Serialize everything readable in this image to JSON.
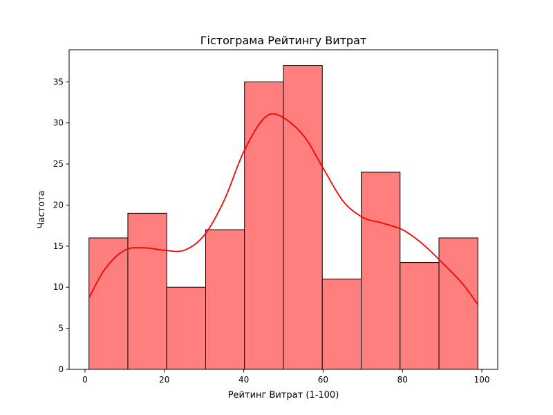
{
  "chart_data": {
    "type": "bar",
    "title": "Гістограма Рейтингу Витрат",
    "xlabel": "Рейтинг Витрат (1-100)",
    "ylabel": "Частота",
    "bins": [
      {
        "start": 1.0,
        "end": 10.8,
        "count": 16
      },
      {
        "start": 10.8,
        "end": 20.6,
        "count": 19
      },
      {
        "start": 20.6,
        "end": 30.4,
        "count": 10
      },
      {
        "start": 30.4,
        "end": 40.2,
        "count": 17
      },
      {
        "start": 40.2,
        "end": 50.0,
        "count": 35
      },
      {
        "start": 50.0,
        "end": 59.8,
        "count": 37
      },
      {
        "start": 59.8,
        "end": 69.6,
        "count": 11
      },
      {
        "start": 69.6,
        "end": 79.4,
        "count": 24
      },
      {
        "start": 79.4,
        "end": 89.2,
        "count": 13
      },
      {
        "start": 89.2,
        "end": 99.0,
        "count": 16
      }
    ],
    "kde": {
      "x": [
        1,
        5,
        10,
        15,
        20,
        25,
        30,
        35,
        40,
        45,
        49,
        55,
        60,
        65,
        70,
        75,
        80,
        85,
        90,
        95,
        99
      ],
      "y": [
        8.7,
        12.2,
        14.5,
        14.8,
        14.5,
        14.5,
        16.3,
        20.5,
        26.5,
        30.5,
        30.9,
        28.5,
        24.5,
        20.5,
        18.5,
        17.8,
        17.0,
        15.3,
        13.0,
        10.5,
        7.9
      ]
    },
    "xlim": [
      -4,
      104
    ],
    "ylim": [
      0,
      38.9
    ],
    "x_ticks": [
      0,
      20,
      40,
      60,
      80,
      100
    ],
    "y_ticks": [
      0,
      5,
      10,
      15,
      20,
      25,
      30,
      35
    ],
    "bar_color": "#ff7f7f",
    "bar_edge_color": "#000000",
    "kde_color": "#ff0000",
    "grid": false
  }
}
